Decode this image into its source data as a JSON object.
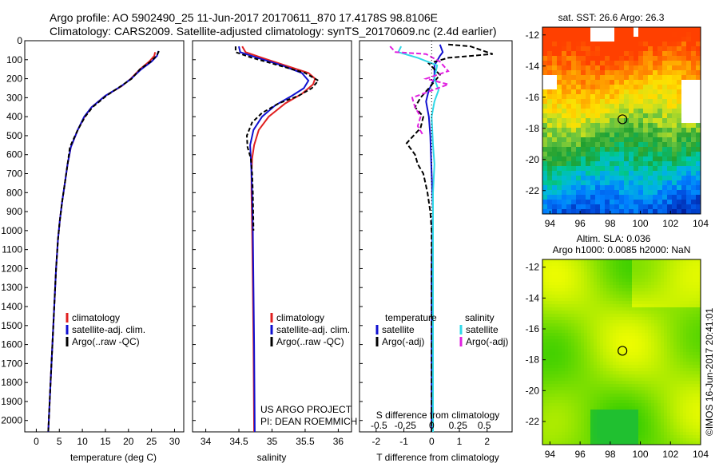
{
  "title": {
    "line1": "Argo profile: AO 5902490_25 11-Jun-2017 20170611_870 17.4178S 98.8106E",
    "line2": "Climatology: CARS2009. Satellite-adjusted climatology: synTS_20170609.nc (2.4d earlier)"
  },
  "colors": {
    "climatology": "#e02020",
    "satellite": "#1010d0",
    "argo": "#000000",
    "sal_satellite": "#30d8e8",
    "sal_argo": "#e020e0"
  },
  "chart_data": [
    {
      "type": "line",
      "name": "temperature-profile",
      "xlabel": "temperature (deg C)",
      "ylabel": "",
      "xlim": [
        -2.5,
        32
      ],
      "ylim": [
        2060,
        0
      ],
      "xticks": [
        "0",
        "5",
        "10",
        "15",
        "20",
        "25",
        "30"
      ],
      "yticks": [
        "0",
        "100",
        "200",
        "300",
        "400",
        "500",
        "600",
        "700",
        "800",
        "900",
        "1000",
        "1100",
        "1200",
        "1300",
        "1400",
        "1500",
        "1600",
        "1700",
        "1800",
        "1900",
        "2000"
      ],
      "legend": [
        "climatology",
        "satellite-adj. clim.",
        "Argo(..raw -QC)"
      ],
      "series": [
        {
          "name": "climatology",
          "color": "#e02020",
          "dash": "",
          "points": [
            [
              25.8,
              60
            ],
            [
              25.6,
              80
            ],
            [
              24.5,
              110
            ],
            [
              22.5,
              150
            ],
            [
              20.5,
              200
            ],
            [
              18.5,
              240
            ],
            [
              15,
              290
            ],
            [
              12,
              350
            ],
            [
              10.5,
              400
            ],
            [
              9,
              470
            ],
            [
              7.5,
              560
            ],
            [
              6.8,
              650
            ],
            [
              6.2,
              750
            ],
            [
              5.6,
              850
            ],
            [
              5.1,
              950
            ],
            [
              4.7,
              1050
            ],
            [
              4.3,
              1200
            ],
            [
              3.9,
              1400
            ],
            [
              3.5,
              1600
            ],
            [
              3.1,
              1800
            ],
            [
              2.6,
              2060
            ]
          ]
        },
        {
          "name": "satellite-adj. clim.",
          "color": "#1010d0",
          "dash": "",
          "points": [
            [
              26.5,
              55
            ],
            [
              26.2,
              80
            ],
            [
              25,
              110
            ],
            [
              22.8,
              150
            ],
            [
              20.6,
              200
            ],
            [
              18.4,
              240
            ],
            [
              15,
              290
            ],
            [
              12,
              350
            ],
            [
              10.4,
              400
            ],
            [
              9,
              470
            ],
            [
              7.5,
              560
            ],
            [
              6.8,
              650
            ],
            [
              6.2,
              750
            ],
            [
              5.6,
              850
            ],
            [
              5.1,
              950
            ],
            [
              4.7,
              1050
            ],
            [
              4.3,
              1200
            ],
            [
              3.9,
              1400
            ],
            [
              3.5,
              1600
            ],
            [
              3.1,
              1800
            ],
            [
              2.6,
              2060
            ]
          ]
        },
        {
          "name": "Argo(..raw -QC)",
          "color": "#000000",
          "dash": "5,3",
          "points": [
            [
              26.6,
              55
            ],
            [
              26.1,
              80
            ],
            [
              24.8,
              110
            ],
            [
              22.5,
              150
            ],
            [
              20.7,
              200
            ],
            [
              18.3,
              240
            ],
            [
              15.2,
              290
            ],
            [
              12.2,
              350
            ],
            [
              10.6,
              400
            ],
            [
              9,
              470
            ],
            [
              7.3,
              560
            ],
            [
              6.8,
              650
            ],
            [
              6.2,
              750
            ],
            [
              5.6,
              850
            ],
            [
              5.1,
              950
            ],
            [
              4.7,
              1050
            ],
            [
              4.3,
              1200
            ],
            [
              3.9,
              1400
            ],
            [
              3.5,
              1600
            ],
            [
              3.1,
              1800
            ],
            [
              2.6,
              2060
            ]
          ]
        }
      ]
    },
    {
      "type": "line",
      "name": "salinity-profile",
      "xlabel": "salinity",
      "xlim": [
        33.8,
        36.2
      ],
      "ylim": [
        2060,
        0
      ],
      "xticks": [
        "34",
        "34.5",
        "35",
        "35.5",
        "36"
      ],
      "legend": [
        "climatology",
        "satellite-adj. clim.",
        "Argo(..raw -QC)"
      ],
      "annotation": [
        "US ARGO PROJECT",
        "PI: DEAN ROEMMICH"
      ],
      "series": [
        {
          "name": "climatology",
          "color": "#e02020",
          "dash": "",
          "points": [
            [
              34.55,
              30
            ],
            [
              34.6,
              60
            ],
            [
              34.85,
              90
            ],
            [
              35.2,
              130
            ],
            [
              35.55,
              170
            ],
            [
              35.65,
              200
            ],
            [
              35.62,
              230
            ],
            [
              35.45,
              280
            ],
            [
              35.2,
              330
            ],
            [
              34.95,
              400
            ],
            [
              34.8,
              470
            ],
            [
              34.73,
              550
            ],
            [
              34.7,
              620
            ],
            [
              34.69,
              700
            ],
            [
              34.69,
              800
            ],
            [
              34.7,
              1000
            ],
            [
              34.71,
              1300
            ],
            [
              34.72,
              1600
            ],
            [
              34.73,
              2060
            ]
          ]
        },
        {
          "name": "satellite-adj. clim.",
          "color": "#1010d0",
          "dash": "",
          "points": [
            [
              34.5,
              30
            ],
            [
              34.52,
              60
            ],
            [
              34.78,
              90
            ],
            [
              35.15,
              130
            ],
            [
              35.45,
              170
            ],
            [
              35.55,
              210
            ],
            [
              35.48,
              250
            ],
            [
              35.3,
              290
            ],
            [
              35.05,
              340
            ],
            [
              34.85,
              400
            ],
            [
              34.72,
              470
            ],
            [
              34.67,
              550
            ],
            [
              34.68,
              620
            ],
            [
              34.69,
              700
            ],
            [
              34.7,
              800
            ],
            [
              34.71,
              1000
            ],
            [
              34.72,
              1300
            ],
            [
              34.73,
              1600
            ],
            [
              34.74,
              2060
            ]
          ]
        },
        {
          "name": "Argo(..raw -QC)",
          "color": "#000000",
          "dash": "5,3",
          "points": [
            [
              34.45,
              30
            ],
            [
              34.45,
              60
            ],
            [
              34.7,
              90
            ],
            [
              35.0,
              120
            ],
            [
              35.5,
              170
            ],
            [
              35.7,
              210
            ],
            [
              35.6,
              250
            ],
            [
              35.4,
              290
            ],
            [
              35.1,
              330
            ],
            [
              34.85,
              380
            ],
            [
              34.7,
              430
            ],
            [
              34.62,
              500
            ],
            [
              34.63,
              560
            ],
            [
              34.68,
              620
            ],
            [
              34.7,
              700
            ],
            [
              34.71,
              800
            ],
            [
              34.72,
              1000
            ]
          ]
        }
      ]
    },
    {
      "type": "line",
      "name": "difference-from-climatology",
      "xlabel": "T difference from climatology",
      "xlabel_top": "S difference from climatology",
      "xlim": [
        -2.6,
        2.9
      ],
      "ylim": [
        2060,
        0
      ],
      "xticks": [
        "-2",
        "-1",
        "0",
        "1",
        "2"
      ],
      "xticks_top": [
        "-0.5",
        "-0.25",
        "0",
        "0.25",
        "0.5"
      ],
      "legend_headers": [
        "temperature",
        "salinity"
      ],
      "legend": [
        "satellite",
        "Argo(-adj)",
        "satellite",
        "Argo(-adj)"
      ],
      "series": [
        {
          "name": "temperature satellite",
          "color": "#1010d0",
          "dash": "",
          "points": [
            [
              0.3,
              20
            ],
            [
              0.4,
              60
            ],
            [
              0.3,
              80
            ],
            [
              0.1,
              130
            ],
            [
              0.1,
              200
            ],
            [
              -0.1,
              260
            ],
            [
              -0.2,
              320
            ],
            [
              -0.1,
              400
            ],
            [
              -0.05,
              500
            ],
            [
              0,
              700
            ],
            [
              0.05,
              900
            ],
            [
              0,
              1200
            ],
            [
              0,
              1600
            ],
            [
              0,
              2060
            ]
          ]
        },
        {
          "name": "temperature Argo(-adj)",
          "color": "#000000",
          "dash": "6,3",
          "points": [
            [
              0.6,
              20
            ],
            [
              1.4,
              30
            ],
            [
              2.2,
              70
            ],
            [
              0.6,
              90
            ],
            [
              -0.1,
              120
            ],
            [
              0.3,
              180
            ],
            [
              -0.1,
              250
            ],
            [
              -0.4,
              300
            ],
            [
              -0.6,
              350
            ],
            [
              -0.3,
              400
            ],
            [
              -0.4,
              460
            ],
            [
              -0.9,
              540
            ],
            [
              -0.6,
              600
            ],
            [
              -0.5,
              650
            ],
            [
              -0.3,
              700
            ],
            [
              -0.15,
              800
            ],
            [
              -0.05,
              900
            ],
            [
              0,
              1000
            ],
            [
              0,
              1300
            ],
            [
              0,
              1600
            ],
            [
              0,
              2060
            ]
          ]
        },
        {
          "name": "salinity satellite",
          "color": "#30d8e8",
          "dash": "",
          "points": [
            [
              -1.1,
              30
            ],
            [
              -1.2,
              60
            ],
            [
              -0.5,
              90
            ],
            [
              0.2,
              130
            ],
            [
              0.1,
              200
            ],
            [
              0.25,
              260
            ],
            [
              0.1,
              320
            ],
            [
              0,
              400
            ],
            [
              0.05,
              550
            ],
            [
              0.1,
              650
            ],
            [
              0.05,
              800
            ],
            [
              0.05,
              1000
            ],
            [
              0.05,
              1300
            ],
            [
              0.05,
              1600
            ],
            [
              0.05,
              2060
            ]
          ]
        },
        {
          "name": "salinity Argo(-adj)",
          "color": "#e020e0",
          "dash": "6,3",
          "points": [
            [
              -1.5,
              30
            ],
            [
              -1.3,
              60
            ],
            [
              -0.2,
              70
            ],
            [
              0.3,
              110
            ],
            [
              0.6,
              160
            ],
            [
              -0.2,
              200
            ],
            [
              0.6,
              230
            ],
            [
              -0.7,
              300
            ],
            [
              -0.6,
              350
            ],
            [
              -0.4,
              400
            ],
            [
              -0.5,
              450
            ],
            [
              -0.3,
              500
            ]
          ]
        }
      ]
    },
    {
      "type": "heatmap",
      "name": "satellite-sst-map",
      "title": "sat. SST: 26.6  Argo: 26.3",
      "xlim": [
        93.5,
        104
      ],
      "ylim": [
        -23.5,
        -11.5
      ],
      "xticks": [
        "94",
        "96",
        "98",
        "100",
        "102",
        "104"
      ],
      "yticks": [
        "-12",
        "-14",
        "-16",
        "-18",
        "-20",
        "-22"
      ],
      "marker": {
        "lon": 98.81,
        "lat": -17.42
      },
      "palette": [
        "#ff4000",
        "#ff8000",
        "#ffb000",
        "#ffe000",
        "#c8e020",
        "#60c040",
        "#20a030",
        "#00c890",
        "#00b8e0",
        "#0080ff",
        "#0050e0",
        "#0020a0"
      ],
      "has_gaps": true
    },
    {
      "type": "heatmap",
      "name": "altimetry-sla-map",
      "title": "Altim. SLA: 0.036",
      "subtitle": "Argo h1000: 0.0085 h2000: NaN",
      "xlim": [
        93.5,
        104
      ],
      "ylim": [
        -23.5,
        -11.5
      ],
      "xticks": [
        "94",
        "96",
        "98",
        "100",
        "102",
        "104"
      ],
      "yticks": [
        "-12",
        "-14",
        "-16",
        "-18",
        "-20",
        "-22"
      ],
      "marker": {
        "lon": 98.81,
        "lat": -17.42
      },
      "palette": [
        "#f8ff00",
        "#c0f000",
        "#80e000",
        "#40d000",
        "#20c030"
      ],
      "has_gaps": false
    }
  ],
  "credit": "©IMOS 16-Jun-2017 20:41:01"
}
